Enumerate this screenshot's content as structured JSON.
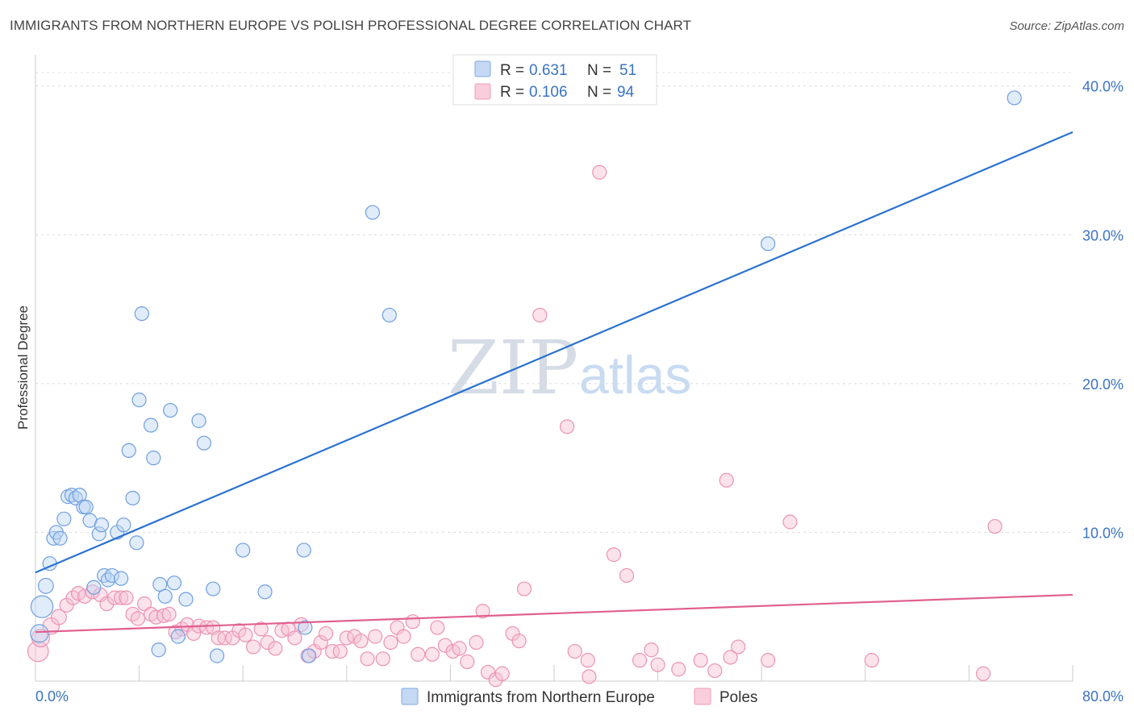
{
  "title": "IMMIGRANTS FROM NORTHERN EUROPE VS POLISH PROFESSIONAL DEGREE CORRELATION CHART",
  "source": "Source: ZipAtlas.com",
  "watermark": {
    "zip": "ZIP",
    "atlas": "atlas"
  },
  "colors": {
    "blue": "#6f9fe0",
    "blue_line": "#2b72d0",
    "pink": "#f08cad",
    "pink_line": "#e0608f",
    "tick_text": "#3b73c4"
  },
  "legend": {
    "r_label": "R =",
    "n_label": "N =",
    "rows": [
      {
        "series": "blue",
        "r": "0.631",
        "n": "51"
      },
      {
        "series": "pink",
        "r": "0.106",
        "n": "94"
      }
    ]
  },
  "bottom_legend": [
    {
      "series": "blue",
      "label": "Immigrants from Northern Europe"
    },
    {
      "series": "pink",
      "label": "Poles"
    }
  ],
  "chart_data": {
    "type": "scatter",
    "title": "IMMIGRANTS FROM NORTHERN EUROPE VS POLISH PROFESSIONAL DEGREE CORRELATION CHART",
    "xlabel": "",
    "ylabel": "Professional Degree",
    "xlim": [
      0,
      80
    ],
    "ylim": [
      0,
      41.5
    ],
    "x_tick_labels": [
      "0.0%",
      "80.0%"
    ],
    "y_ticks": [
      10,
      20,
      30,
      40
    ],
    "y_tick_labels": [
      "10.0%",
      "20.0%",
      "30.0%",
      "40.0%"
    ],
    "grid": true,
    "series": [
      {
        "name": "Immigrants from Northern Europe",
        "color": "blue",
        "r": 0.631,
        "n": 51,
        "trend": {
          "x": [
            0,
            80
          ],
          "y": [
            7.3,
            36.9
          ]
        },
        "points": [
          [
            0.5,
            5.0,
            1.6
          ],
          [
            0.3,
            3.2,
            1.3
          ],
          [
            0.8,
            6.4,
            1.1
          ],
          [
            1.1,
            7.9,
            1.0
          ],
          [
            1.4,
            9.6,
            1.0
          ],
          [
            1.6,
            10.0,
            1.0
          ],
          [
            1.9,
            9.6,
            1.0
          ],
          [
            2.2,
            10.9,
            1.0
          ],
          [
            2.5,
            12.4,
            1.0
          ],
          [
            2.8,
            12.5,
            1.0
          ],
          [
            3.1,
            12.3,
            1.0
          ],
          [
            3.4,
            12.5,
            1.0
          ],
          [
            3.7,
            11.7,
            1.0
          ],
          [
            3.9,
            11.7,
            1.0
          ],
          [
            4.2,
            10.8,
            1.0
          ],
          [
            4.5,
            6.3,
            1.0
          ],
          [
            4.9,
            9.9,
            1.0
          ],
          [
            5.1,
            10.5,
            1.0
          ],
          [
            5.3,
            7.1,
            1.0
          ],
          [
            5.6,
            6.8,
            1.0
          ],
          [
            5.9,
            7.1,
            1.0
          ],
          [
            6.3,
            10.0,
            1.0
          ],
          [
            6.6,
            6.9,
            1.0
          ],
          [
            6.8,
            10.5,
            1.0
          ],
          [
            7.2,
            15.5,
            1.0
          ],
          [
            7.5,
            12.3,
            1.0
          ],
          [
            7.8,
            9.3,
            1.0
          ],
          [
            8.0,
            18.9,
            1.0
          ],
          [
            8.2,
            24.7,
            1.0
          ],
          [
            8.9,
            17.2,
            1.0
          ],
          [
            9.1,
            15.0,
            1.0
          ],
          [
            9.5,
            2.1,
            1.0
          ],
          [
            9.6,
            6.5,
            1.0
          ],
          [
            10.0,
            5.7,
            1.0
          ],
          [
            10.4,
            18.2,
            1.0
          ],
          [
            10.7,
            6.6,
            1.0
          ],
          [
            11.0,
            3.0,
            1.0
          ],
          [
            11.6,
            5.5,
            1.0
          ],
          [
            12.6,
            17.5,
            1.0
          ],
          [
            13.0,
            16.0,
            1.0
          ],
          [
            13.7,
            6.2,
            1.0
          ],
          [
            14.0,
            1.7,
            1.0
          ],
          [
            16.0,
            8.8,
            1.0
          ],
          [
            17.7,
            6.0,
            1.0
          ],
          [
            20.7,
            8.8,
            1.0
          ],
          [
            20.8,
            3.6,
            1.0
          ],
          [
            21.1,
            1.7,
            1.0
          ],
          [
            26.0,
            31.5,
            1.0
          ],
          [
            27.3,
            24.6,
            1.0
          ],
          [
            56.5,
            29.4,
            1.0
          ],
          [
            75.5,
            39.2,
            1.0
          ]
        ]
      },
      {
        "name": "Poles",
        "color": "pink",
        "r": 0.106,
        "n": 94,
        "trend": {
          "x": [
            0,
            80
          ],
          "y": [
            3.3,
            5.8
          ]
        },
        "points": [
          [
            0.2,
            2.0,
            1.5
          ],
          [
            0.4,
            2.9,
            1.3
          ],
          [
            1.2,
            3.7,
            1.2
          ],
          [
            1.8,
            4.3,
            1.1
          ],
          [
            2.4,
            5.1,
            1.0
          ],
          [
            2.9,
            5.6,
            1.0
          ],
          [
            3.3,
            5.9,
            1.0
          ],
          [
            3.8,
            5.7,
            1.0
          ],
          [
            4.4,
            6.0,
            1.0
          ],
          [
            5.0,
            5.8,
            1.0
          ],
          [
            5.5,
            5.2,
            1.0
          ],
          [
            6.1,
            5.6,
            1.0
          ],
          [
            6.6,
            5.6,
            1.0
          ],
          [
            7.0,
            5.6,
            1.0
          ],
          [
            7.5,
            4.5,
            1.0
          ],
          [
            7.9,
            4.2,
            1.0
          ],
          [
            8.4,
            5.2,
            1.0
          ],
          [
            8.9,
            4.5,
            1.0
          ],
          [
            9.3,
            4.3,
            1.0
          ],
          [
            9.9,
            4.4,
            1.0
          ],
          [
            10.3,
            4.5,
            1.0
          ],
          [
            10.8,
            3.3,
            1.0
          ],
          [
            11.3,
            3.5,
            1.0
          ],
          [
            11.7,
            3.8,
            1.0
          ],
          [
            12.2,
            3.2,
            1.0
          ],
          [
            12.6,
            3.7,
            1.0
          ],
          [
            13.2,
            3.6,
            1.0
          ],
          [
            13.7,
            3.6,
            1.0
          ],
          [
            14.1,
            2.9,
            1.0
          ],
          [
            14.6,
            2.9,
            1.0
          ],
          [
            15.2,
            2.9,
            1.0
          ],
          [
            15.7,
            3.4,
            1.0
          ],
          [
            16.2,
            3.1,
            1.0
          ],
          [
            16.8,
            2.3,
            1.0
          ],
          [
            17.4,
            3.5,
            1.0
          ],
          [
            17.9,
            2.6,
            1.0
          ],
          [
            18.5,
            2.2,
            1.0
          ],
          [
            19.0,
            3.4,
            1.0
          ],
          [
            19.5,
            3.5,
            1.0
          ],
          [
            20.0,
            2.9,
            1.0
          ],
          [
            20.5,
            3.8,
            1.0
          ],
          [
            21.0,
            1.7,
            1.0
          ],
          [
            21.5,
            2.0,
            1.0
          ],
          [
            22.0,
            2.6,
            1.0
          ],
          [
            22.4,
            3.2,
            1.0
          ],
          [
            22.9,
            2.0,
            1.0
          ],
          [
            23.5,
            2.0,
            1.0
          ],
          [
            24.0,
            2.9,
            1.0
          ],
          [
            24.6,
            3.0,
            1.0
          ],
          [
            25.1,
            2.7,
            1.0
          ],
          [
            25.6,
            1.5,
            1.0
          ],
          [
            26.2,
            3.0,
            1.0
          ],
          [
            26.8,
            1.5,
            1.0
          ],
          [
            27.4,
            2.6,
            1.0
          ],
          [
            27.9,
            3.6,
            1.0
          ],
          [
            28.4,
            3.0,
            1.0
          ],
          [
            29.1,
            4.0,
            1.0
          ],
          [
            29.5,
            1.8,
            1.0
          ],
          [
            30.6,
            1.8,
            1.0
          ],
          [
            31.0,
            3.6,
            1.0
          ],
          [
            31.6,
            2.4,
            1.0
          ],
          [
            32.2,
            2.0,
            1.0
          ],
          [
            32.7,
            2.2,
            1.0
          ],
          [
            33.3,
            1.3,
            1.0
          ],
          [
            34.0,
            2.6,
            1.0
          ],
          [
            34.5,
            4.7,
            1.0
          ],
          [
            34.9,
            0.6,
            1.0
          ],
          [
            35.5,
            0.1,
            1.0
          ],
          [
            36.0,
            0.5,
            1.0
          ],
          [
            36.8,
            3.2,
            1.0
          ],
          [
            37.3,
            2.7,
            1.0
          ],
          [
            37.7,
            6.2,
            1.0
          ],
          [
            38.9,
            24.6,
            1.0
          ],
          [
            41.0,
            17.1,
            1.0
          ],
          [
            41.6,
            2.0,
            1.0
          ],
          [
            42.6,
            1.4,
            1.0
          ],
          [
            42.7,
            0.3,
            1.0
          ],
          [
            43.5,
            34.2,
            1.0
          ],
          [
            44.6,
            8.5,
            1.0
          ],
          [
            45.6,
            7.1,
            1.0
          ],
          [
            46.6,
            1.4,
            1.0
          ],
          [
            47.5,
            2.1,
            1.0
          ],
          [
            48.0,
            1.1,
            1.0
          ],
          [
            49.6,
            0.8,
            1.0
          ],
          [
            51.3,
            1.4,
            1.0
          ],
          [
            52.4,
            0.7,
            1.0
          ],
          [
            53.3,
            13.5,
            1.0
          ],
          [
            53.6,
            1.6,
            1.0
          ],
          [
            54.2,
            2.3,
            1.0
          ],
          [
            56.5,
            1.4,
            1.0
          ],
          [
            58.2,
            10.7,
            1.0
          ],
          [
            64.5,
            1.4,
            1.0
          ],
          [
            73.1,
            0.5,
            1.0
          ],
          [
            74.0,
            10.4,
            1.0
          ]
        ]
      }
    ]
  }
}
